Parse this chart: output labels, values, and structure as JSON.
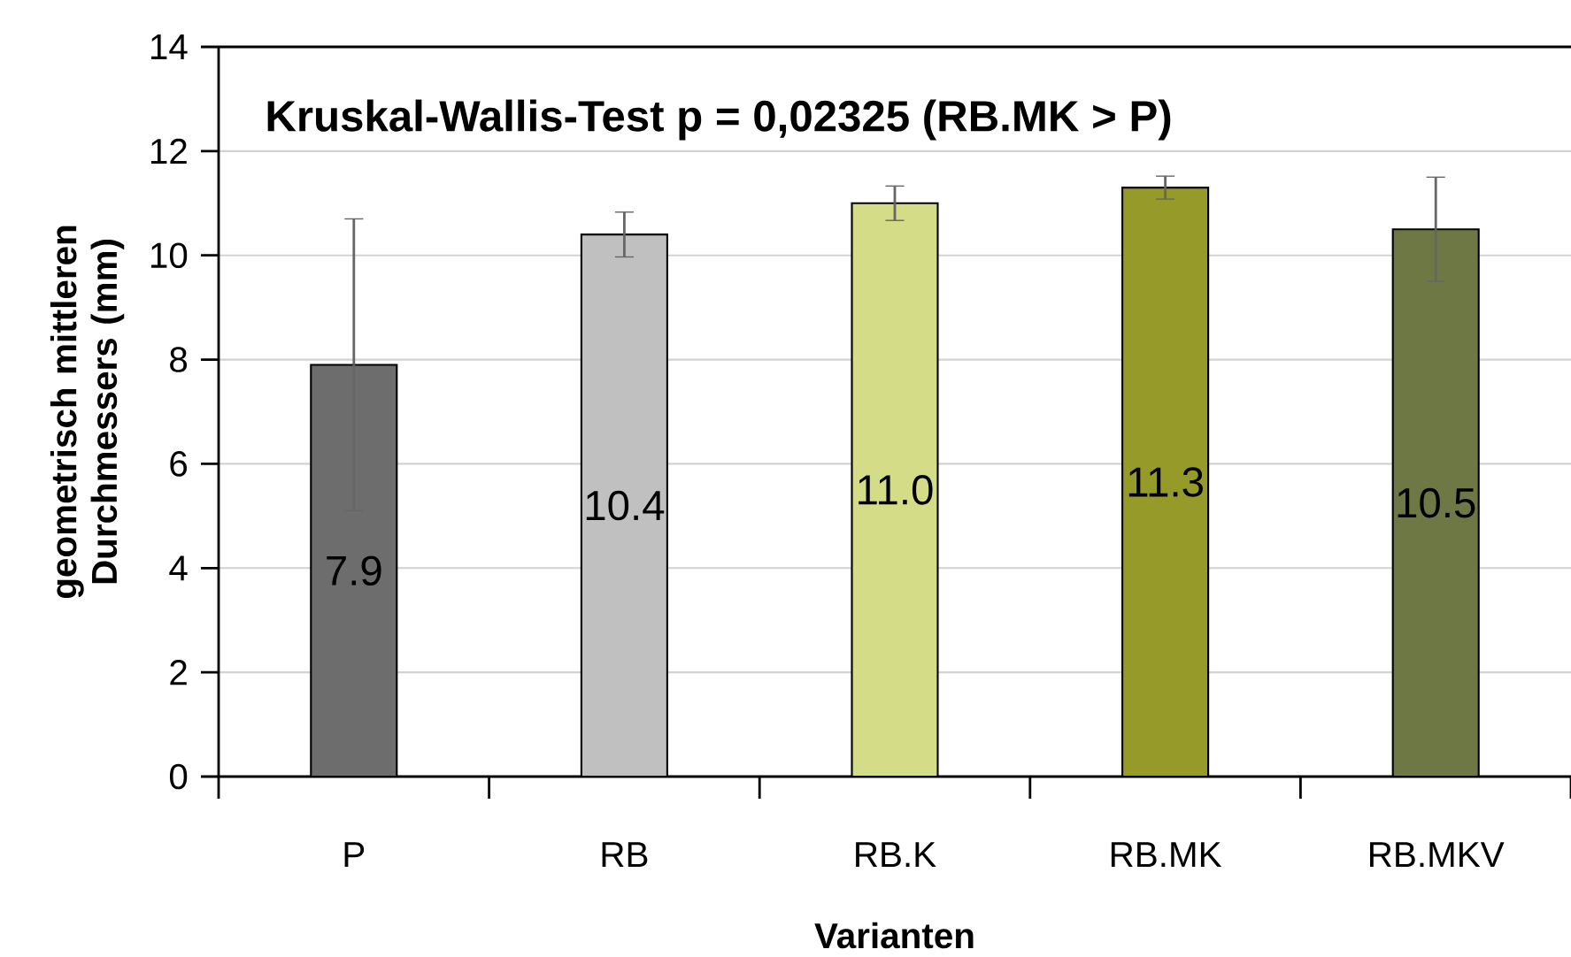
{
  "chart_data": {
    "type": "bar",
    "title": "Kruskal-Wallis-Test p = 0,02325 (RB.MK > P)",
    "xlabel": "Varianten",
    "ylabel": "geometrisch mittleren Durchmessers (mm)",
    "categories": [
      "P",
      "RB",
      "RB.K",
      "RB.MK",
      "RB.MKV"
    ],
    "values": [
      7.9,
      10.4,
      11.0,
      11.3,
      10.5
    ],
    "colors": [
      "#6d6d6d",
      "#c0c0c0",
      "#d4dc88",
      "#969a28",
      "#6e7845"
    ],
    "errors": [
      2.8,
      0.43,
      0.33,
      0.22,
      1.0
    ],
    "value_labels": [
      "7.9",
      "10.4",
      "11.0",
      "11.3",
      "10.5"
    ],
    "ylim": [
      0,
      14
    ],
    "yticks": [
      0,
      2,
      4,
      6,
      8,
      10,
      12,
      14
    ],
    "grid": "y"
  }
}
